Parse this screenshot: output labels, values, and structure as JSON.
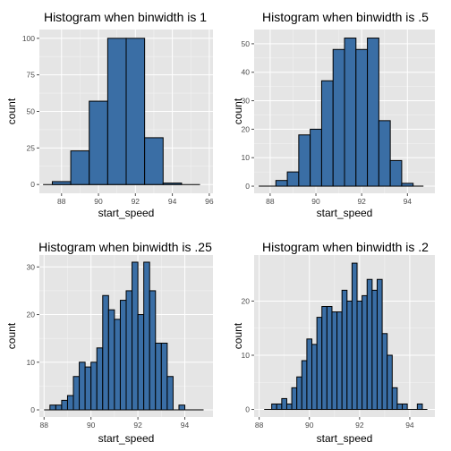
{
  "colors": {
    "bar_fill": "#3a6ea5",
    "bar_stroke": "#000000",
    "panel_bg": "#e5e5e5",
    "grid": "#ffffff"
  },
  "chart_data": [
    {
      "type": "bar",
      "title": "Histogram when binwidth is 1",
      "xlabel": "start_speed",
      "ylabel": "count",
      "grid": true,
      "xlim": [
        86.8,
        96.2
      ],
      "ylim": [
        -6,
        106
      ],
      "xticks": [
        88,
        90,
        92,
        94,
        96
      ],
      "yticks": [
        0,
        25,
        50,
        75,
        100
      ],
      "bin_start": 87.5,
      "binwidth": 1,
      "values": [
        2,
        23,
        57,
        100,
        100,
        32,
        1
      ],
      "baseline_x": [
        87.0,
        95.5
      ]
    },
    {
      "type": "bar",
      "title": "Histogram when binwidth is .5",
      "xlabel": "start_speed",
      "ylabel": "count",
      "grid": true,
      "xlim": [
        87.3,
        95.2
      ],
      "ylim": [
        -2.5,
        55
      ],
      "xticks": [
        88,
        90,
        92,
        94
      ],
      "yticks": [
        0,
        10,
        20,
        30,
        40,
        50
      ],
      "bin_start": 88.25,
      "binwidth": 0.5,
      "values": [
        2,
        5,
        18,
        20,
        37,
        48,
        52,
        48,
        52,
        23,
        9,
        1
      ],
      "baseline_x": [
        87.5,
        94.7
      ]
    },
    {
      "type": "bar",
      "title": "Histogram when binwidth is .25",
      "xlabel": "start_speed",
      "ylabel": "count",
      "grid": true,
      "xlim": [
        87.8,
        95.2
      ],
      "ylim": [
        -1.5,
        32.5
      ],
      "xticks": [
        88,
        90,
        92,
        94
      ],
      "yticks": [
        0,
        10,
        20,
        30
      ],
      "bin_start": 88.25,
      "binwidth": 0.25,
      "values": [
        1,
        1,
        2,
        3,
        7,
        10,
        9,
        10,
        13,
        24,
        21,
        19,
        23,
        25,
        31,
        20,
        31,
        25,
        14,
        14,
        7,
        0,
        1
      ],
      "baseline_x": [
        88.0,
        94.8
      ]
    },
    {
      "type": "bar",
      "title": "Histogram when binwidth is .2",
      "xlabel": "start_speed",
      "ylabel": "count",
      "grid": true,
      "xlim": [
        87.8,
        95.0
      ],
      "ylim": [
        -1.4,
        28.5
      ],
      "xticks": [
        88,
        90,
        92,
        94
      ],
      "yticks": [
        0,
        10,
        20
      ],
      "bin_start": 88.5,
      "binwidth": 0.2,
      "values": [
        1,
        1,
        2,
        1,
        4,
        6,
        9,
        13,
        12,
        17,
        19,
        19,
        18,
        18,
        22,
        20,
        27,
        20,
        21,
        24,
        22,
        24,
        14,
        10,
        4,
        1,
        1,
        0,
        0,
        1
      ],
      "baseline_x": [
        88.2,
        94.7
      ]
    }
  ]
}
